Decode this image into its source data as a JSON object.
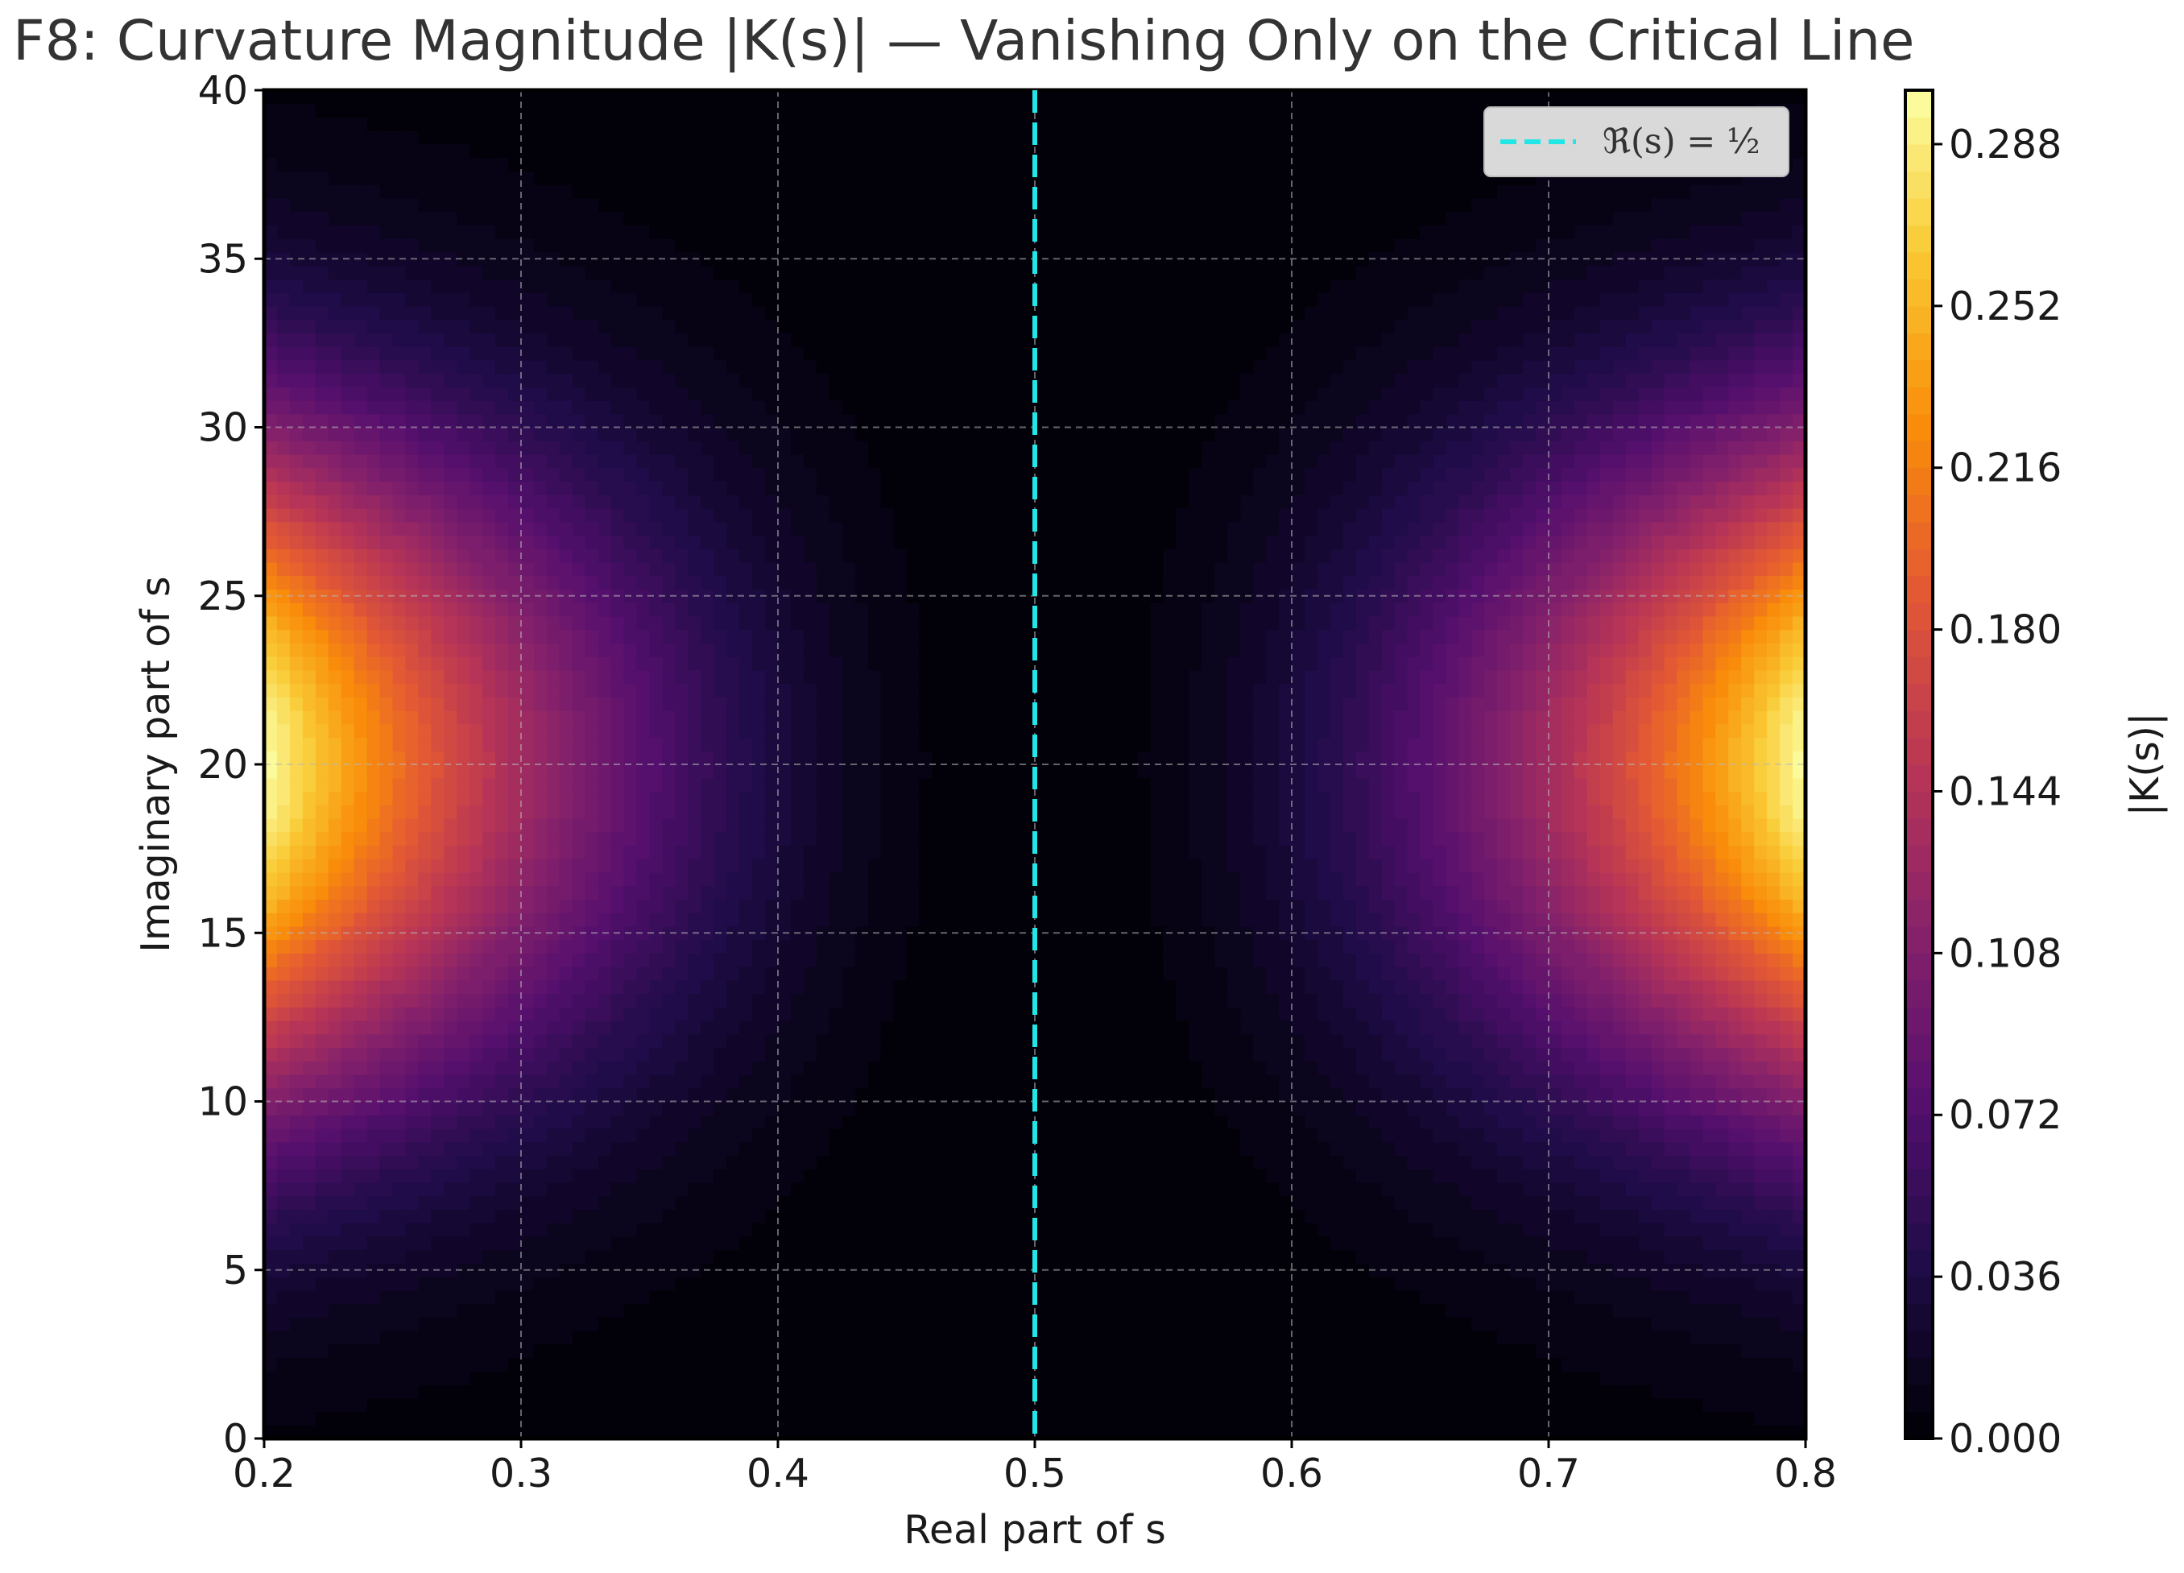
{
  "chart_data": {
    "type": "heatmap",
    "title": "F8: Curvature Magnitude |K(s)| — Vanishing Only on the Critical Line",
    "xlabel": "Real part of s",
    "ylabel": "Imaginary part of s",
    "xlim": [
      0.2,
      0.8
    ],
    "ylim": [
      0,
      40
    ],
    "xticks": [
      "0.2",
      "0.3",
      "0.4",
      "0.5",
      "0.6",
      "0.7",
      "0.8"
    ],
    "yticks": [
      "0",
      "5",
      "10",
      "15",
      "20",
      "25",
      "30",
      "35",
      "40"
    ],
    "colormap": "inferno",
    "colorbar": {
      "label": "|K(s)|",
      "range": [
        0.0,
        0.3
      ],
      "ticks": [
        "0.000",
        "0.036",
        "0.072",
        "0.108",
        "0.144",
        "0.180",
        "0.216",
        "0.252",
        "0.288"
      ]
    },
    "field": {
      "description_of_shape": "symmetric about Re(s)=0.5, zero on the critical line, peaks at the left and right edges near Im(s)=20",
      "max_value": 0.3,
      "peak_im": 20,
      "im_spread": 10,
      "re_exponent": 2,
      "contour_levels": 50
    },
    "vline": {
      "x": 0.5,
      "color": "#22e5e5",
      "style": "dashed"
    },
    "legend": {
      "label": "ℜ(s) = ½",
      "placement": "upper right"
    },
    "grid": true
  }
}
